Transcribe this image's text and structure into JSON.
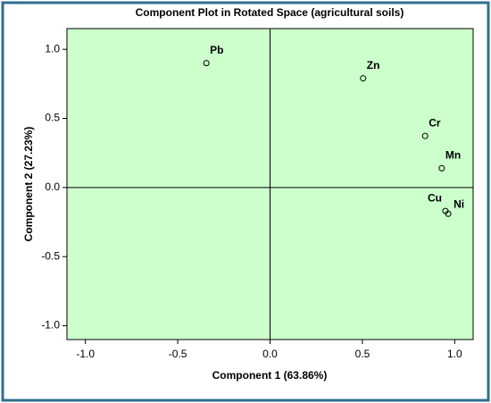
{
  "chart_data": {
    "type": "scatter",
    "title": "Component Plot in Rotated Space (agricultural soils)",
    "xlabel": "Component 1 (63.86%)",
    "ylabel": "Component 2 (27.23%)",
    "labels": [
      "Pb",
      "Zn",
      "Cr",
      "Mn",
      "Cu",
      "Ni"
    ],
    "x": [
      -0.345,
      0.504,
      0.84,
      0.93,
      0.95,
      0.965
    ],
    "values": [
      0.9,
      0.79,
      0.373,
      0.14,
      -0.17,
      -0.19
    ],
    "xlim": [
      -1.1,
      1.1
    ],
    "ylim": [
      -1.1,
      1.15
    ],
    "xticks": [
      {
        "value": -1,
        "label": "-1.0"
      },
      -0.5,
      {
        "value": 0,
        "label": "0.0"
      },
      0.5,
      {
        "value": 1,
        "label": "1.0"
      }
    ],
    "yticks": [
      {
        "value": -1,
        "label": "-1.0"
      },
      -0.5,
      {
        "value": 0,
        "label": "0.0"
      },
      0.5,
      {
        "value": 1,
        "label": "1.0"
      }
    ],
    "background": "#ccffcc",
    "marker_color": "#000000"
  }
}
